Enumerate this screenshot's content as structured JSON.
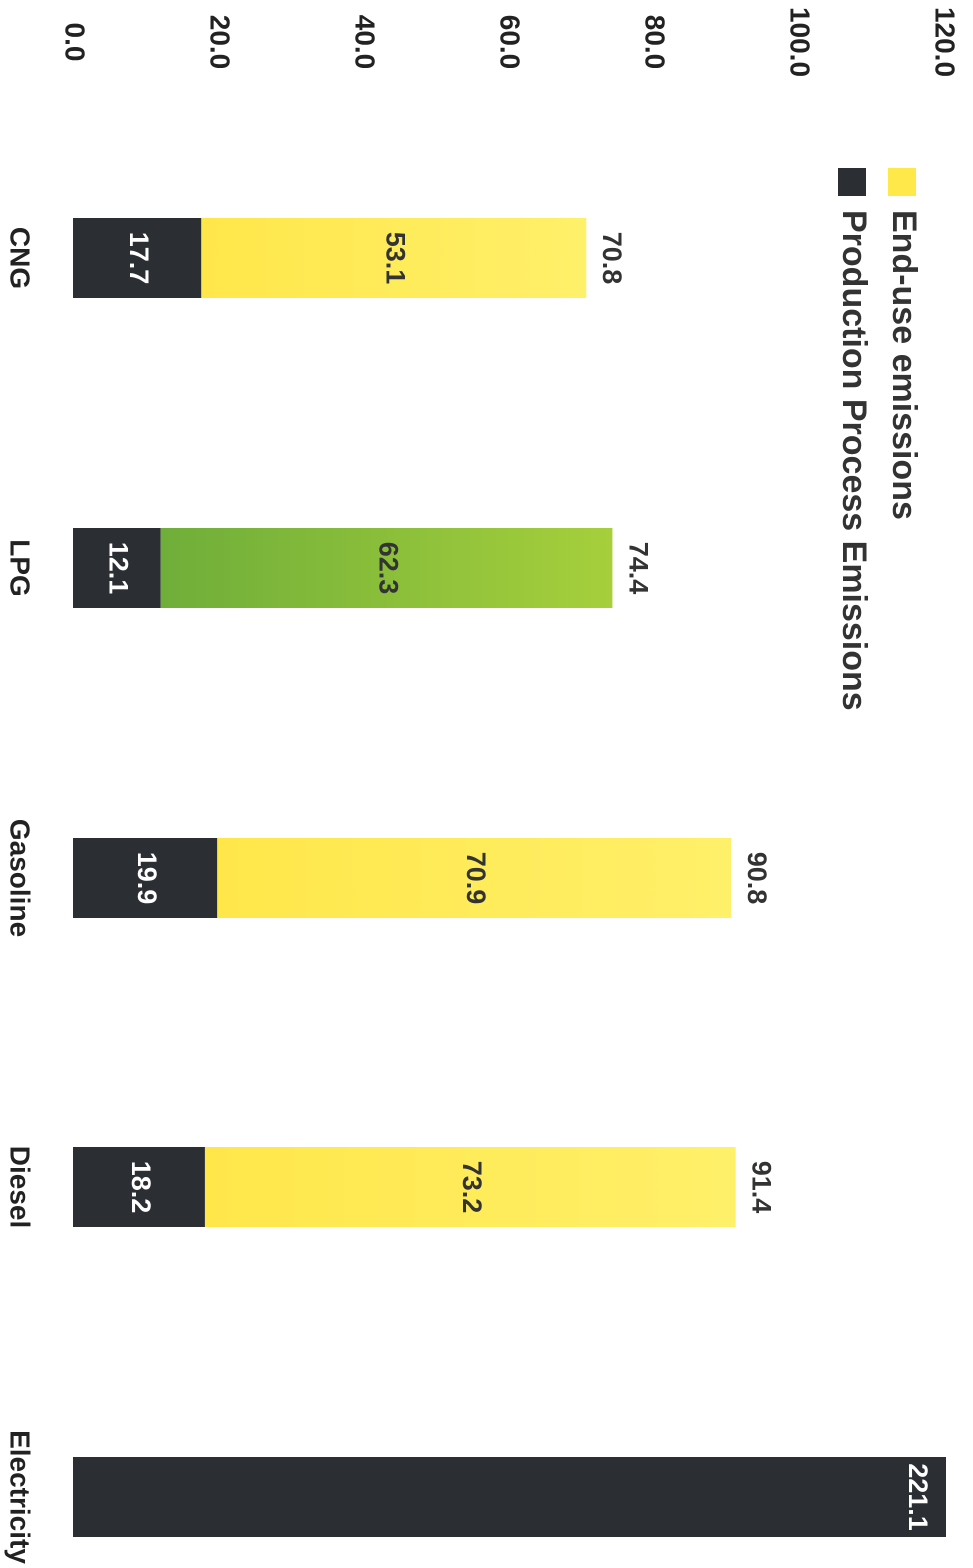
{
  "chart_data": {
    "type": "bar",
    "stacked": true,
    "orientation": "horizontal",
    "categories": [
      "CNG",
      "LPG",
      "Gasoline",
      "Diesel",
      "Electricity"
    ],
    "series": [
      {
        "name": "Production Process Emissions",
        "color": "#2b2f33",
        "values": [
          17.7,
          12.1,
          19.9,
          18.2,
          221.1
        ]
      },
      {
        "name": "End-use emissions",
        "color": "#ffe84a",
        "values": [
          53.1,
          62.3,
          70.9,
          73.2,
          null
        ]
      }
    ],
    "highlight": {
      "category": "LPG",
      "series": "End-use emissions",
      "color": "#8cc43a"
    },
    "totals": [
      70.8,
      74.4,
      90.8,
      91.4,
      null
    ],
    "segment_labels": [
      [
        "17.7",
        "53.1"
      ],
      [
        "12.1",
        "62.3"
      ],
      [
        "19.9",
        "70.9"
      ],
      [
        "18.2",
        "73.2"
      ],
      [
        "221.1",
        null
      ]
    ],
    "total_labels": [
      "70.8",
      "74.4",
      "90.8",
      "91.4",
      null
    ],
    "ticks": [
      "0.0",
      "20.0",
      "40.0",
      "60.0",
      "80.0",
      "100.0",
      "120.0"
    ],
    "tick_values": [
      0,
      20,
      40,
      60,
      80,
      100,
      120
    ],
    "ylim": [
      0,
      120
    ],
    "legend": [
      {
        "label": "End-use emissions",
        "color": "#ffe84a"
      },
      {
        "label": "Production Process Emissions",
        "color": "#2b2f33"
      }
    ],
    "legend_position": "top",
    "grid": false
  }
}
